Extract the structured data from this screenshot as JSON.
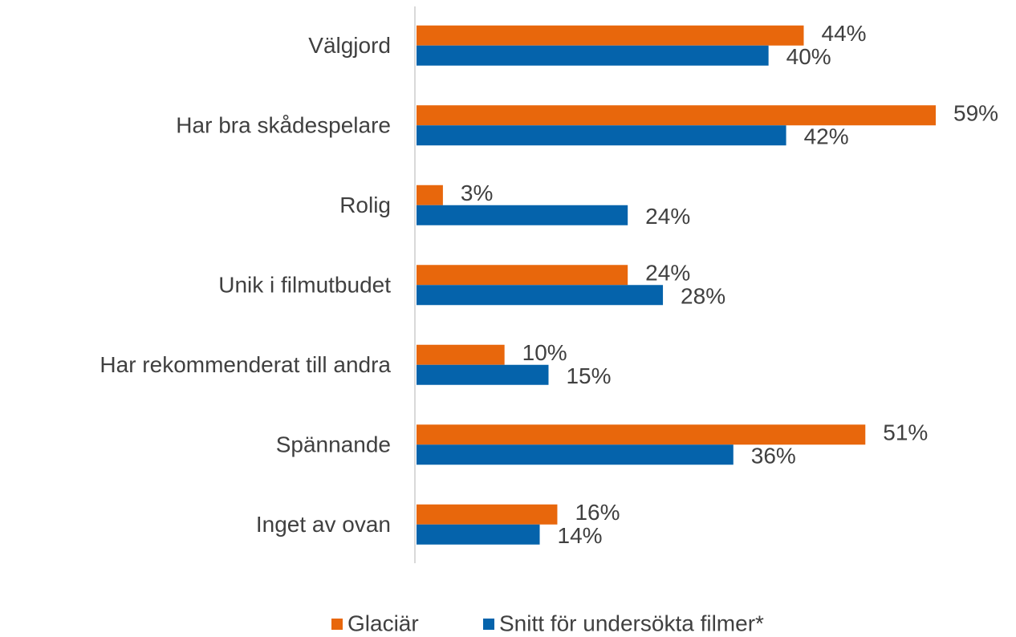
{
  "chart_data": {
    "type": "bar",
    "orientation": "horizontal",
    "categories": [
      "Välgjord",
      "Har bra skådespelare",
      "Rolig",
      "Unik i filmutbudet",
      "Har rekommenderat till andra",
      "Spännande",
      "Inget av ovan"
    ],
    "series": [
      {
        "name": "Glaciär",
        "color": "#e8670c",
        "values": [
          44,
          59,
          3,
          24,
          10,
          51,
          16
        ],
        "value_labels": [
          "44%",
          "59%",
          "3%",
          "24%",
          "10%",
          "51%",
          "16%"
        ]
      },
      {
        "name": "Snitt för undersökta filmer*",
        "color": "#0563ab",
        "values": [
          40,
          42,
          24,
          28,
          15,
          36,
          14
        ],
        "value_labels": [
          "40%",
          "42%",
          "24%",
          "28%",
          "15%",
          "36%",
          "14%"
        ]
      }
    ],
    "legend": "bottom"
  }
}
